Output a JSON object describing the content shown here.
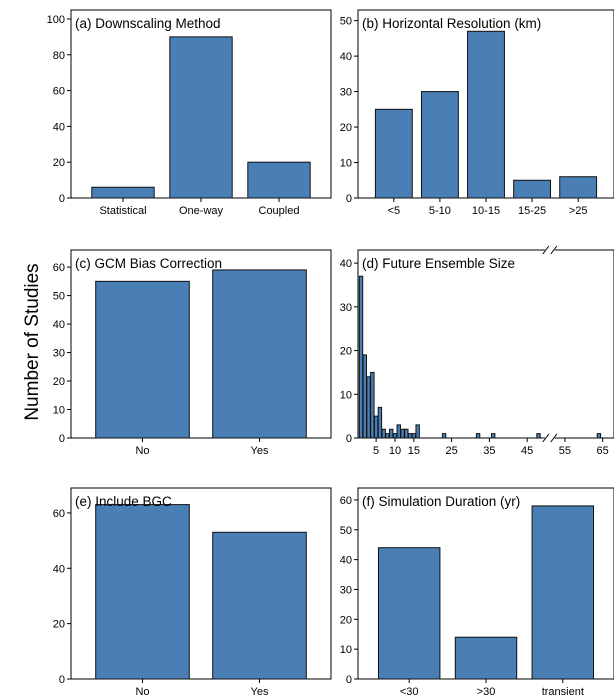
{
  "figure": {
    "ylabel": "Number of Studies",
    "bar_color": "#4a7fb5",
    "edge_color": "#111111"
  },
  "chart_data": [
    {
      "id": "a",
      "type": "bar",
      "title": "(a) Downscaling Method",
      "categories": [
        "Statistical",
        "One-way",
        "Coupled"
      ],
      "values": [
        6,
        90,
        20
      ],
      "ylim": [
        0,
        105
      ],
      "yticks": [
        0,
        20,
        40,
        60,
        80,
        100
      ]
    },
    {
      "id": "b",
      "type": "bar",
      "title": "(b) Horizontal Resolution (km)",
      "categories": [
        "<5",
        "5-10",
        "10-15",
        "15-25",
        ">25"
      ],
      "values": [
        25,
        30,
        47,
        5,
        6
      ],
      "ylim": [
        0,
        53
      ],
      "yticks": [
        0,
        10,
        20,
        30,
        40,
        50
      ]
    },
    {
      "id": "c",
      "type": "bar",
      "title": "(c) GCM Bias Correction",
      "categories": [
        "No",
        "Yes"
      ],
      "values": [
        55,
        59
      ],
      "ylim": [
        0,
        66
      ],
      "yticks": [
        0,
        10,
        20,
        30,
        40,
        50,
        60
      ]
    },
    {
      "id": "d",
      "type": "bar",
      "title": "(d) Future Ensemble Size",
      "axis_break": true,
      "x": [
        1,
        2,
        3,
        4,
        5,
        6,
        7,
        8,
        9,
        10,
        11,
        12,
        13,
        14,
        15,
        16,
        23,
        32,
        36,
        48,
        64
      ],
      "values": [
        37,
        19,
        14,
        15,
        5,
        7,
        2,
        1,
        2,
        1,
        3,
        2,
        2,
        1,
        1,
        3,
        1,
        1,
        1,
        1,
        1
      ],
      "xticks": [
        5,
        10,
        15,
        25,
        35,
        45,
        55,
        65
      ],
      "ylim": [
        0,
        43
      ],
      "yticks": [
        0,
        10,
        20,
        30,
        40
      ]
    },
    {
      "id": "e",
      "type": "bar",
      "title": "(e) Include BGC",
      "categories": [
        "No",
        "Yes"
      ],
      "values": [
        63,
        53
      ],
      "ylim": [
        0,
        69
      ],
      "yticks": [
        0,
        20,
        40,
        60
      ]
    },
    {
      "id": "f",
      "type": "bar",
      "title": "(f) Simulation Duration (yr)",
      "categories": [
        "<30",
        ">30",
        "transient"
      ],
      "values": [
        44,
        14,
        58
      ],
      "ylim": [
        0,
        64
      ],
      "yticks": [
        0,
        10,
        20,
        30,
        40,
        50,
        60
      ]
    }
  ]
}
